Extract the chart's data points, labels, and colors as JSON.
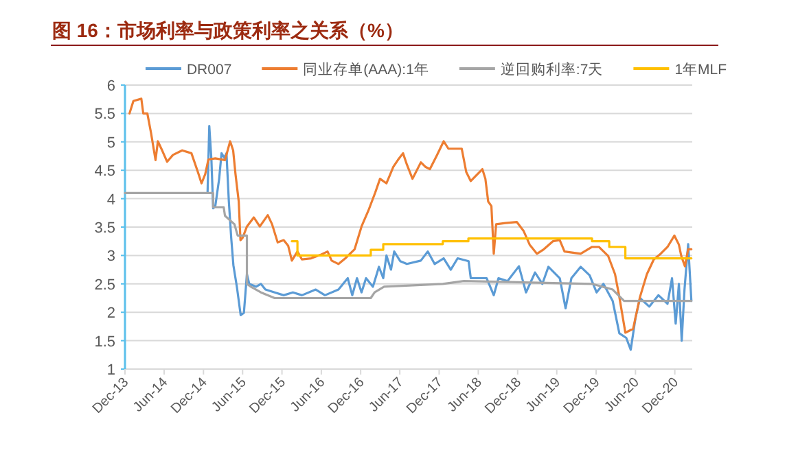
{
  "chart_data": {
    "type": "line",
    "title": "图 16：市场利率与政策利率之关系（%）",
    "xlim": [
      "2013-12-01",
      "2021-02-20"
    ],
    "xticks": [
      {
        "value": "2013-12",
        "label": "Dec-13"
      },
      {
        "value": "2014-06",
        "label": "Jun-14"
      },
      {
        "value": "2014-12",
        "label": "Dec-14"
      },
      {
        "value": "2015-06",
        "label": "Jun-15"
      },
      {
        "value": "2015-12",
        "label": "Dec-15"
      },
      {
        "value": "2016-06",
        "label": "Jun-16"
      },
      {
        "value": "2016-12",
        "label": "Dec-16"
      },
      {
        "value": "2017-06",
        "label": "Jun-17"
      },
      {
        "value": "2017-12",
        "label": "Dec-17"
      },
      {
        "value": "2018-06",
        "label": "Jun-18"
      },
      {
        "value": "2018-12",
        "label": "Dec-18"
      },
      {
        "value": "2019-06",
        "label": "Jun-19"
      },
      {
        "value": "2019-12",
        "label": "Dec-19"
      },
      {
        "value": "2020-06",
        "label": "Jun-20"
      },
      {
        "value": "2020-12",
        "label": "Dec-20"
      }
    ],
    "ylim": [
      1,
      6
    ],
    "yticks": [
      1,
      1.5,
      2,
      2.5,
      3,
      3.5,
      4,
      4.5,
      5,
      5.5,
      6
    ],
    "grid": "y",
    "legend": "top",
    "series": [
      {
        "name": "DR007",
        "color": "#5b9bd5",
        "x": [
          "2014-12-20",
          "2014-12-28",
          "2015-01-07",
          "2015-01-15",
          "2015-01-25",
          "2015-02-12",
          "2015-02-23",
          "2015-03-08",
          "2015-03-18",
          "2015-03-29",
          "2015-04-09",
          "2015-04-19",
          "2015-05-06",
          "2015-05-23",
          "2015-06-07",
          "2015-06-21",
          "2015-07-02",
          "2015-08-03",
          "2015-08-25",
          "2015-09-15",
          "2015-10-28",
          "2015-12-09",
          "2016-01-21",
          "2016-03-03",
          "2016-05-06",
          "2016-06-18",
          "2016-08-20",
          "2016-10-02",
          "2016-10-23",
          "2016-11-14",
          "2016-12-05",
          "2016-12-26",
          "2017-01-27",
          "2017-02-24",
          "2017-03-16",
          "2017-03-31",
          "2017-04-21",
          "2017-05-06",
          "2017-06-03",
          "2017-07-04",
          "2017-09-07",
          "2017-10-09",
          "2017-11-10",
          "2017-12-22",
          "2018-01-24",
          "2018-02-25",
          "2018-04-17",
          "2018-04-27",
          "2018-07-10",
          "2018-08-12",
          "2018-09-03",
          "2018-10-15",
          "2018-12-07",
          "2019-01-09",
          "2019-02-20",
          "2019-03-26",
          "2019-04-23",
          "2019-06-15",
          "2019-07-12",
          "2019-08-08",
          "2019-09-20",
          "2019-11-01",
          "2019-12-03",
          "2020-01-04",
          "2020-02-16",
          "2020-03-18",
          "2020-04-19",
          "2020-05-10",
          "2020-06-01",
          "2020-06-22",
          "2020-08-04",
          "2020-09-16",
          "2020-10-28",
          "2020-11-18",
          "2020-12-05",
          "2020-12-20",
          "2021-01-02",
          "2021-01-15",
          "2021-02-01",
          "2021-02-16"
        ],
        "values": [
          4.11,
          5.28,
          4.68,
          3.83,
          3.87,
          4.35,
          4.8,
          4.72,
          4.8,
          3.95,
          3.31,
          2.83,
          2.43,
          1.95,
          1.99,
          2.67,
          2.5,
          2.45,
          2.5,
          2.4,
          2.35,
          2.3,
          2.35,
          2.3,
          2.4,
          2.3,
          2.4,
          2.6,
          2.3,
          2.6,
          2.35,
          2.6,
          2.45,
          2.8,
          2.6,
          3.0,
          2.75,
          3.07,
          2.9,
          2.85,
          2.91,
          3.07,
          2.85,
          2.95,
          2.75,
          2.95,
          2.9,
          2.6,
          2.6,
          2.3,
          2.6,
          2.55,
          2.81,
          2.35,
          2.7,
          2.5,
          2.8,
          2.6,
          2.07,
          2.6,
          2.8,
          2.65,
          2.35,
          2.5,
          2.2,
          1.63,
          1.55,
          1.34,
          1.9,
          2.25,
          2.1,
          2.3,
          2.15,
          2.6,
          1.8,
          2.5,
          1.5,
          2.4,
          3.2,
          2.2
        ]
      },
      {
        "name": "同业存单(AAA):1年",
        "color": "#ed7d31",
        "x": [
          "2013-12-22",
          "2014-01-09",
          "2014-02-15",
          "2014-02-24",
          "2014-03-15",
          "2014-04-01",
          "2014-04-22",
          "2014-05-03",
          "2014-05-24",
          "2014-06-15",
          "2014-07-12",
          "2014-08-24",
          "2014-10-06",
          "2014-11-05",
          "2014-11-22",
          "2014-12-09",
          "2014-12-24",
          "2015-01-25",
          "2015-03-11",
          "2015-04-04",
          "2015-04-18",
          "2015-04-29",
          "2015-05-14",
          "2015-05-22",
          "2015-06-01",
          "2015-06-21",
          "2015-07-23",
          "2015-08-20",
          "2015-09-26",
          "2015-10-16",
          "2015-11-11",
          "2015-12-09",
          "2015-12-30",
          "2016-01-16",
          "2016-02-11",
          "2016-03-03",
          "2016-04-15",
          "2016-05-27",
          "2016-06-30",
          "2016-07-19",
          "2016-08-20",
          "2016-09-21",
          "2016-11-03",
          "2016-12-05",
          "2017-01-06",
          "2017-02-07",
          "2017-03-01",
          "2017-03-31",
          "2017-05-02",
          "2017-05-23",
          "2017-06-16",
          "2017-07-04",
          "2017-07-30",
          "2017-09-07",
          "2017-09-28",
          "2017-10-19",
          "2017-11-20",
          "2017-12-22",
          "2018-01-13",
          "2018-03-16",
          "2018-04-06",
          "2018-04-27",
          "2018-06-20",
          "2018-07-04",
          "2018-07-17",
          "2018-08-01",
          "2018-08-12",
          "2018-08-23",
          "2018-10-05",
          "2018-11-27",
          "2018-12-29",
          "2019-01-26",
          "2019-03-01",
          "2019-04-02",
          "2019-05-14",
          "2019-06-15",
          "2019-07-07",
          "2019-09-20",
          "2019-11-12",
          "2019-12-14",
          "2020-01-26",
          "2020-02-27",
          "2020-03-18",
          "2020-04-15",
          "2020-05-21",
          "2020-06-22",
          "2020-07-24",
          "2020-08-25",
          "2020-09-26",
          "2020-10-28",
          "2020-11-29",
          "2020-12-20",
          "2020-12-31",
          "2021-01-17",
          "2021-02-01",
          "2021-02-16"
        ],
        "values": [
          5.5,
          5.72,
          5.76,
          5.5,
          5.5,
          5.16,
          4.68,
          5.01,
          4.84,
          4.65,
          4.77,
          4.85,
          4.8,
          4.47,
          4.27,
          4.43,
          4.69,
          4.71,
          4.68,
          5.01,
          4.85,
          4.43,
          3.95,
          3.27,
          3.31,
          3.51,
          3.67,
          3.51,
          3.71,
          3.55,
          3.23,
          3.27,
          3.17,
          2.91,
          3.07,
          2.93,
          2.95,
          3.01,
          3.07,
          2.91,
          2.85,
          2.95,
          3.11,
          3.51,
          3.79,
          4.11,
          4.35,
          4.27,
          4.56,
          4.68,
          4.8,
          4.6,
          4.35,
          4.64,
          4.56,
          4.52,
          4.76,
          5.01,
          4.88,
          4.88,
          4.47,
          4.31,
          4.52,
          4.35,
          3.95,
          3.87,
          3.03,
          3.55,
          3.57,
          3.59,
          3.43,
          3.19,
          3.03,
          3.11,
          3.25,
          3.27,
          3.07,
          3.03,
          3.15,
          3.15,
          2.99,
          2.67,
          2.27,
          1.64,
          1.71,
          2.27,
          2.67,
          2.93,
          3.03,
          3.15,
          3.35,
          3.19,
          2.99,
          2.81,
          3.11,
          3.11
        ]
      },
      {
        "name": "逆回购利率:7天",
        "color": "#a5a5a5",
        "x": [
          "2013-12-01",
          "2015-01-15",
          "2015-01-15",
          "2015-03-05",
          "2015-03-11",
          "2015-04-24",
          "2015-05-09",
          "2015-06-21",
          "2015-06-21",
          "2015-07-09",
          "2015-08-25",
          "2015-10-28",
          "2017-01-17",
          "2017-02-04",
          "2017-03-20",
          "2017-12-18",
          "2018-03-26",
          "2019-11-12",
          "2020-02-16",
          "2020-04-09",
          "2021-02-16"
        ],
        "values": [
          4.1,
          4.1,
          3.85,
          3.85,
          3.7,
          3.55,
          3.35,
          3.35,
          2.5,
          2.45,
          2.35,
          2.25,
          2.25,
          2.35,
          2.45,
          2.5,
          2.55,
          2.5,
          2.4,
          2.2,
          2.2
        ]
      },
      {
        "name": "1年MLF",
        "color": "#ffc000",
        "x": [
          "2016-01-16",
          "2016-02-11",
          "2016-02-11",
          "2017-01-17",
          "2017-01-17",
          "2017-03-16",
          "2017-03-16",
          "2017-12-18",
          "2017-12-18",
          "2018-04-16",
          "2018-04-16",
          "2019-11-12",
          "2019-11-12",
          "2020-01-31",
          "2020-01-31",
          "2020-04-15",
          "2020-04-15",
          "2021-02-16"
        ],
        "values": [
          3.25,
          3.25,
          3.0,
          3.0,
          3.1,
          3.1,
          3.2,
          3.2,
          3.25,
          3.25,
          3.3,
          3.3,
          3.25,
          3.25,
          3.15,
          3.15,
          2.95,
          2.95
        ]
      }
    ]
  }
}
